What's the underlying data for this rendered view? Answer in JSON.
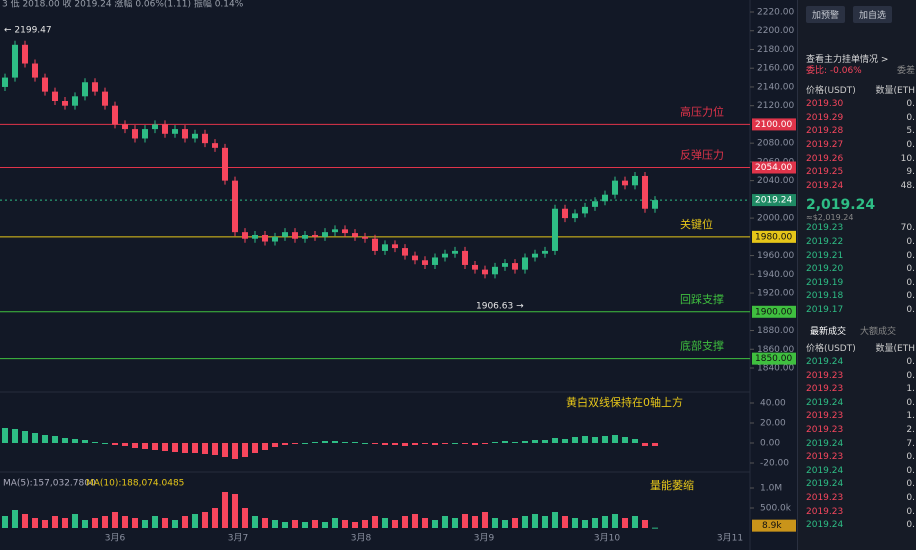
{
  "header": {
    "text": "3 低 2018.00 收 2019.24 涨幅 0.06%(1.11) 振幅 0.14%"
  },
  "chart": {
    "type": "candlestick",
    "ylim": [
      1840,
      2220
    ],
    "yticks": [
      {
        "value": 2220,
        "label": "2220.00"
      },
      {
        "value": 2200,
        "label": "2200.00"
      },
      {
        "value": 2180,
        "label": "2180.00"
      },
      {
        "value": 2160,
        "label": "2160.00"
      },
      {
        "value": 2140,
        "label": "2140.00"
      },
      {
        "value": 2120,
        "label": "2120.00"
      },
      {
        "value": 2080,
        "label": "2080.00"
      },
      {
        "value": 2060,
        "label": "2060.00"
      },
      {
        "value": 2040,
        "label": "2040.00"
      },
      {
        "value": 2000,
        "label": "2000.00"
      },
      {
        "value": 1960,
        "label": "1960.00"
      },
      {
        "value": 1940,
        "label": "1940.00"
      },
      {
        "value": 1920,
        "label": "1920.00"
      },
      {
        "value": 1880,
        "label": "1880.00"
      },
      {
        "value": 1860,
        "label": "1860.00"
      },
      {
        "value": 1840,
        "label": "1840.00"
      }
    ],
    "first_open": 2140,
    "closes": [
      2150,
      2185,
      2165,
      2150,
      2135,
      2125,
      2120,
      2130,
      2145,
      2135,
      2120,
      2100,
      2095,
      2085,
      2095,
      2100,
      2090,
      2095,
      2085,
      2090,
      2080,
      2075,
      2040,
      1985,
      1978,
      1982,
      1975,
      1980,
      1985,
      1978,
      1982,
      1980,
      1985,
      1988,
      1984,
      1980,
      1978,
      1965,
      1972,
      1968,
      1960,
      1955,
      1950,
      1958,
      1962,
      1965,
      1950,
      1945,
      1940,
      1948,
      1952,
      1945,
      1958,
      1962,
      1965,
      2010,
      2000,
      2005,
      2012,
      2018,
      2025,
      2040,
      2035,
      2045,
      2010,
      2019.24
    ],
    "levels": [
      {
        "value": 2100,
        "label": "2100.00",
        "name": "高压力位",
        "color": "#e0344a"
      },
      {
        "value": 2054,
        "label": "2054.00",
        "name": "反弹压力",
        "color": "#e0344a"
      },
      {
        "value": 1980,
        "label": "1980.00",
        "name": "关键位",
        "color": "#e6c619"
      },
      {
        "value": 1900,
        "label": "1900.00",
        "name": "回踩支撑",
        "color": "#3fbf3f"
      },
      {
        "value": 1850,
        "label": "1850.00",
        "name": "底部支撑",
        "color": "#3fbf3f"
      }
    ],
    "last": {
      "value": 2019.24,
      "label": "2019.24"
    },
    "high_note": "← 2199.47",
    "low_note": "1906.63 →",
    "x_labels": [
      "3月6",
      "3月7",
      "3月8",
      "3月9",
      "3月10",
      "3月11"
    ]
  },
  "macd": {
    "ylim": [
      -20,
      40
    ],
    "yticks": [
      {
        "value": 40,
        "label": "40.00"
      },
      {
        "value": 20,
        "label": "20.00"
      },
      {
        "value": 0,
        "label": "0.00"
      },
      {
        "value": -20,
        "label": "-20.00"
      }
    ],
    "hist": [
      15,
      14,
      12,
      10,
      8,
      7,
      5,
      4,
      3,
      1,
      0,
      -2,
      -3,
      -5,
      -6,
      -7,
      -8,
      -9,
      -10,
      -10,
      -11,
      -12,
      -14,
      -16,
      -14,
      -10,
      -7,
      -4,
      -2,
      -1,
      0,
      1,
      2,
      2,
      1,
      1,
      0,
      -1,
      -2,
      -2,
      -3,
      -2,
      -1,
      -2,
      -1,
      0,
      -1,
      -2,
      -1,
      1,
      2,
      1,
      2,
      3,
      3,
      5,
      4,
      6,
      7,
      6,
      7,
      8,
      6,
      4,
      -3,
      -3
    ],
    "note": "黄白双线保持在0轴上方"
  },
  "volume": {
    "ma5": "MA(5):157,032.7800",
    "ma10": "MA(10):188,074.0485",
    "ylim": [
      0,
      1000000
    ],
    "yticks": [
      {
        "value": 1000000,
        "label": "1.0M"
      },
      {
        "value": 500000,
        "label": "500.0k"
      }
    ],
    "values": [
      300000,
      450000,
      350000,
      250000,
      200000,
      300000,
      250000,
      350000,
      200000,
      250000,
      300000,
      400000,
      300000,
      250000,
      200000,
      300000,
      250000,
      200000,
      300000,
      350000,
      400000,
      500000,
      900000,
      850000,
      500000,
      300000,
      250000,
      200000,
      150000,
      200000,
      150000,
      200000,
      150000,
      250000,
      200000,
      150000,
      200000,
      300000,
      250000,
      200000,
      300000,
      350000,
      250000,
      200000,
      300000,
      250000,
      350000,
      300000,
      400000,
      250000,
      200000,
      250000,
      300000,
      350000,
      300000,
      400000,
      300000,
      250000,
      200000,
      250000,
      300000,
      350000,
      250000,
      300000,
      200000,
      8900
    ],
    "last": {
      "value": 8900,
      "label": "8.9k"
    },
    "note": "量能萎缩"
  },
  "panel": {
    "buttons": [
      "加预警",
      "加自选"
    ],
    "main_orders": "查看主力挂单情况 >",
    "ratio": "委比: -0.06%",
    "diff": "委差",
    "head": [
      "价格(USDT)",
      "数量(ETH"
    ],
    "asks": [
      [
        "2019.30",
        "0."
      ],
      [
        "2019.29",
        "0."
      ],
      [
        "2019.28",
        "5."
      ],
      [
        "2019.27",
        "0."
      ],
      [
        "2019.26",
        "10."
      ],
      [
        "2019.25",
        "9."
      ],
      [
        "2019.24",
        "48."
      ]
    ],
    "price": "2,019.24",
    "price_usd": "≈$2,019.24",
    "bids": [
      [
        "2019.23",
        "70."
      ],
      [
        "2019.22",
        "0."
      ],
      [
        "2019.21",
        "0."
      ],
      [
        "2019.20",
        "0."
      ],
      [
        "2019.19",
        "0."
      ],
      [
        "2019.18",
        "0."
      ],
      [
        "2019.17",
        "0."
      ]
    ],
    "tabs": [
      "最新成交",
      "大额成交"
    ],
    "trades": [
      [
        "2019.24",
        "0."
      ],
      [
        "2019.23",
        "0."
      ],
      [
        "2019.23",
        "1."
      ],
      [
        "2019.24",
        "0."
      ],
      [
        "2019.23",
        "1."
      ],
      [
        "2019.23",
        "2."
      ],
      [
        "2019.24",
        "7."
      ],
      [
        "2019.23",
        "0."
      ],
      [
        "2019.24",
        "0."
      ],
      [
        "2019.24",
        "0."
      ],
      [
        "2019.23",
        "0."
      ],
      [
        "2019.23",
        "0."
      ],
      [
        "2019.24",
        "0."
      ]
    ]
  }
}
